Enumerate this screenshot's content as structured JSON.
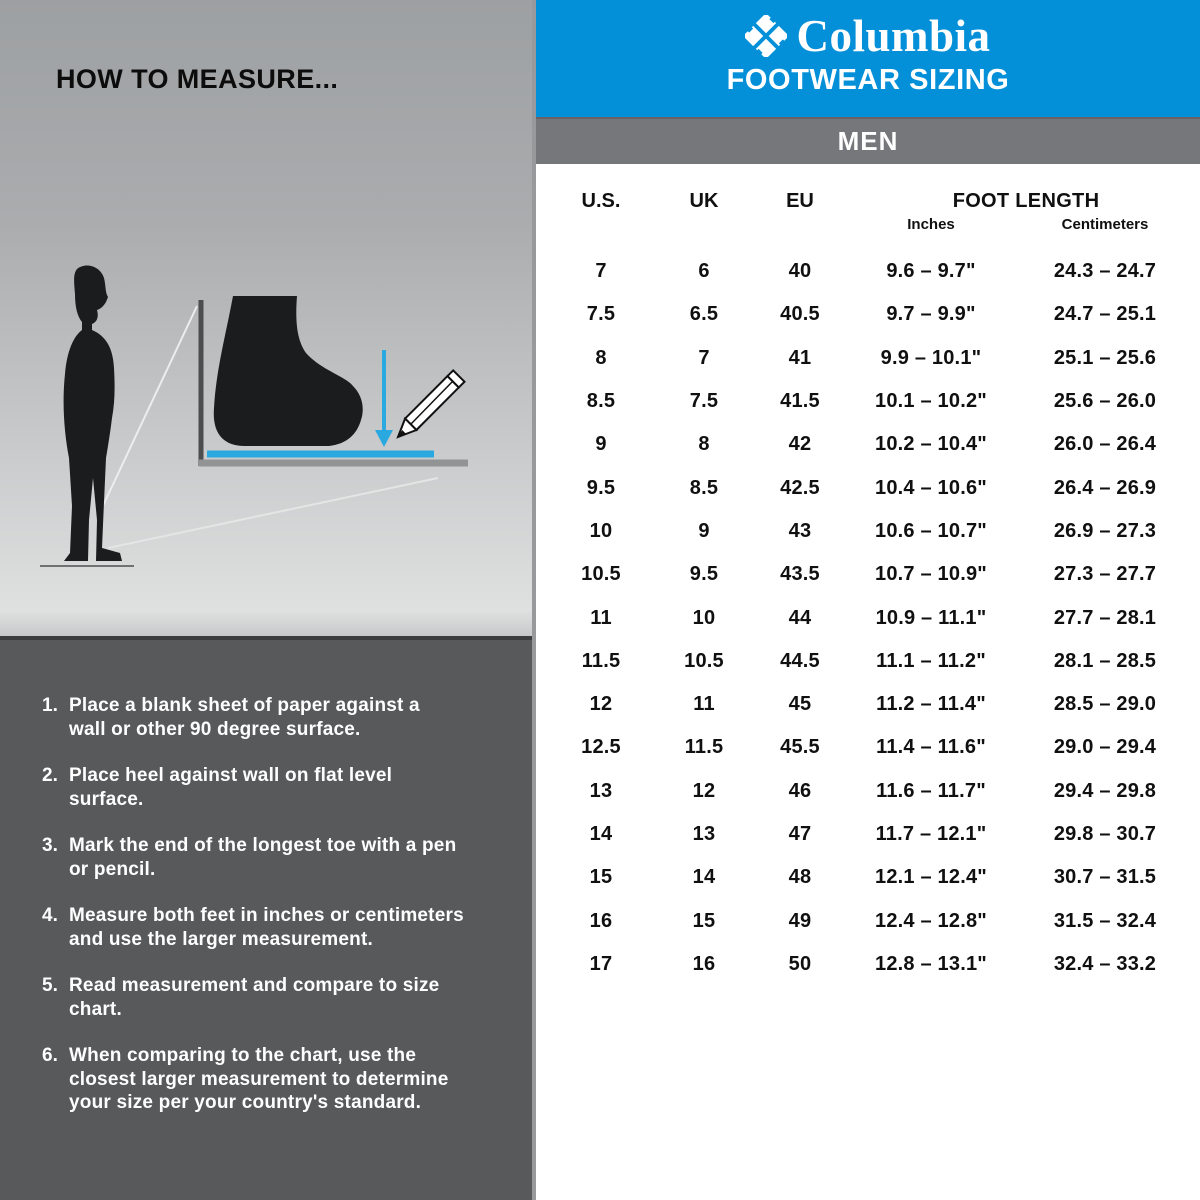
{
  "left_panel": {
    "title": "HOW TO MEASURE...",
    "instructions": [
      {
        "num": "1.",
        "text": "Place a blank sheet of paper against a\nwall or other 90 degree surface."
      },
      {
        "num": "2.",
        "text": "Place heel against wall on flat level\nsurface."
      },
      {
        "num": "3.",
        "text": "Mark the end of the longest toe with a pen\nor pencil."
      },
      {
        "num": "4.",
        "text": "Measure both feet in inches or centimeters\nand use the larger measurement."
      },
      {
        "num": "5.",
        "text": "Read measurement and compare to size\nchart."
      },
      {
        "num": "6.",
        "text": "When comparing to the chart, use the\nclosest larger measurement to determine\nyour size per your country's standard."
      }
    ],
    "illustration_icons": [
      "standing-person-silhouette",
      "foot-silhouette",
      "pencil-icon",
      "measure-arrow"
    ]
  },
  "right_panel": {
    "brand": "Columbia",
    "subtitle": "FOOTWEAR SIZING",
    "section": "MEN",
    "table": {
      "columns": [
        "U.S.",
        "UK",
        "EU"
      ],
      "foot_length_header": "FOOT LENGTH",
      "sub_columns": [
        "Inches",
        "Centimeters"
      ],
      "rows": [
        [
          "7",
          "6",
          "40",
          "9.6 – 9.7\"",
          "24.3 – 24.7"
        ],
        [
          "7.5",
          "6.5",
          "40.5",
          "9.7 – 9.9\"",
          "24.7 – 25.1"
        ],
        [
          "8",
          "7",
          "41",
          "9.9 – 10.1\"",
          "25.1 – 25.6"
        ],
        [
          "8.5",
          "7.5",
          "41.5",
          "10.1 – 10.2\"",
          "25.6 – 26.0"
        ],
        [
          "9",
          "8",
          "42",
          "10.2 – 10.4\"",
          "26.0 – 26.4"
        ],
        [
          "9.5",
          "8.5",
          "42.5",
          "10.4 – 10.6\"",
          "26.4 – 26.9"
        ],
        [
          "10",
          "9",
          "43",
          "10.6 – 10.7\"",
          "26.9 – 27.3"
        ],
        [
          "10.5",
          "9.5",
          "43.5",
          "10.7 – 10.9\"",
          "27.3 – 27.7"
        ],
        [
          "11",
          "10",
          "44",
          "10.9 – 11.1\"",
          "27.7 – 28.1"
        ],
        [
          "11.5",
          "10.5",
          "44.5",
          "11.1 – 11.2\"",
          "28.1 – 28.5"
        ],
        [
          "12",
          "11",
          "45",
          "11.2 – 11.4\"",
          "28.5 – 29.0"
        ],
        [
          "12.5",
          "11.5",
          "45.5",
          "11.4 – 11.6\"",
          "29.0 – 29.4"
        ],
        [
          "13",
          "12",
          "46",
          "11.6 – 11.7\"",
          "29.4 – 29.8"
        ],
        [
          "14",
          "13",
          "47",
          "11.7 – 12.1\"",
          "29.8 – 30.7"
        ],
        [
          "15",
          "14",
          "48",
          "12.1 – 12.4\"",
          "30.7 – 31.5"
        ],
        [
          "16",
          "15",
          "49",
          "12.4 – 12.8\"",
          "31.5 – 32.4"
        ],
        [
          "17",
          "16",
          "50",
          "12.8 – 13.1\"",
          "32.4 – 33.2"
        ]
      ]
    }
  },
  "colors": {
    "brand_blue": "#0390d8",
    "accent_cyan": "#2aa9e0",
    "men_bar_gray": "#76777b",
    "dark_panel_gray": "#58595b",
    "silhouette_black": "#1b1c1e"
  }
}
